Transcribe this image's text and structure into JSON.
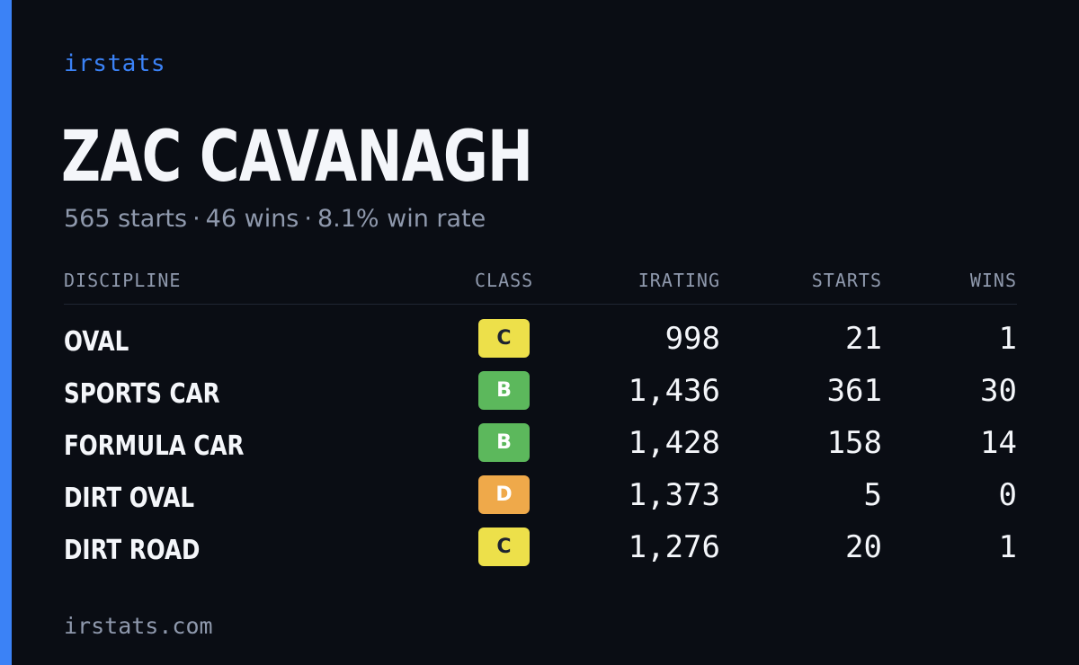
{
  "brand": "irstats",
  "driver": {
    "name": "ZAC CAVANAGH",
    "starts_text": "565 starts",
    "wins_text": "46 wins",
    "win_rate_text": "8.1% win rate",
    "separator": "·"
  },
  "table": {
    "headers": {
      "discipline": "DISCIPLINE",
      "class": "CLASS",
      "irating": "IRATING",
      "starts": "STARTS",
      "wins": "WINS"
    },
    "rows": [
      {
        "discipline": "OVAL",
        "class": "C",
        "class_color": "#ede04a",
        "irating": "998",
        "starts": "21",
        "wins": "1"
      },
      {
        "discipline": "SPORTS CAR",
        "class": "B",
        "class_color": "#5cb85c",
        "irating": "1,436",
        "starts": "361",
        "wins": "30"
      },
      {
        "discipline": "FORMULA CAR",
        "class": "B",
        "class_color": "#5cb85c",
        "irating": "1,428",
        "starts": "158",
        "wins": "14"
      },
      {
        "discipline": "DIRT OVAL",
        "class": "D",
        "class_color": "#efa94a",
        "irating": "1,373",
        "starts": "5",
        "wins": "0"
      },
      {
        "discipline": "DIRT ROAD",
        "class": "C",
        "class_color": "#ede04a",
        "irating": "1,276",
        "starts": "20",
        "wins": "1"
      }
    ]
  },
  "footer": "irstats.com",
  "colors": {
    "accent": "#3b82f6",
    "background": "#0a0d14",
    "text": "#f4f6fa",
    "muted": "#8f99ad"
  }
}
